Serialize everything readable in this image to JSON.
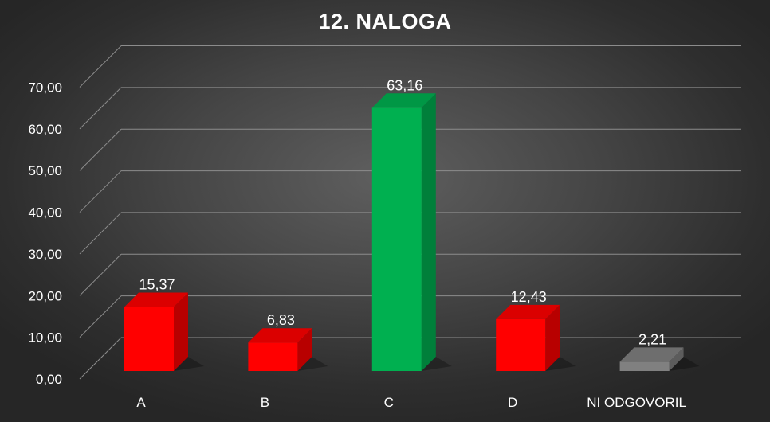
{
  "chart_data": {
    "type": "bar",
    "title": "12. NALOGA",
    "categories": [
      "A",
      "B",
      "C",
      "D",
      "NI ODGOVORIL"
    ],
    "values": [
      15.37,
      6.83,
      63.16,
      12.43,
      2.21
    ],
    "value_labels": [
      "15,37",
      "6,83",
      "63,16",
      "12,43",
      "2,21"
    ],
    "y_tick_labels": [
      "0,00",
      "10,00",
      "20,00",
      "30,00",
      "40,00",
      "50,00",
      "60,00",
      "70,00"
    ],
    "ylim": [
      0,
      70
    ],
    "xlabel": "",
    "ylabel": "",
    "grid": true,
    "legend": "none",
    "bar_colors": [
      "#ff0000",
      "#ff0000",
      "#00b050",
      "#ff0000",
      "#808080"
    ],
    "style": "3d-column"
  }
}
